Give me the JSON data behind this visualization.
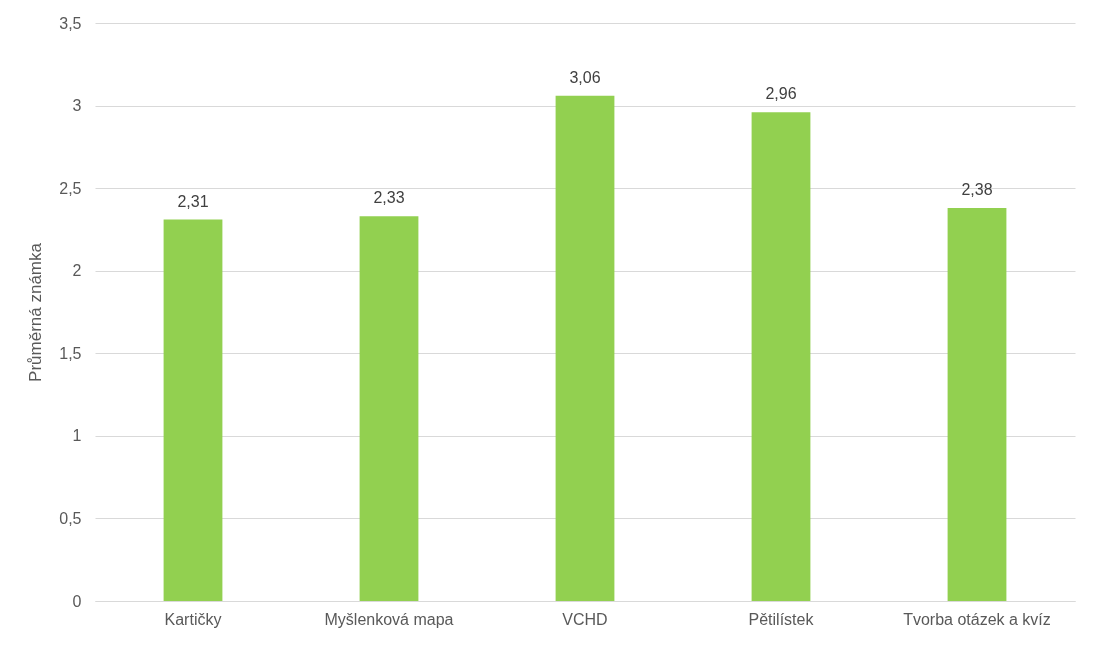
{
  "chart_data": {
    "type": "bar",
    "ylabel": "Průměrná známka",
    "categories": [
      "Kartičky",
      "Myšlenková mapa",
      "VCHD",
      "Pětilístek",
      "Tvorba otázek a kvíz"
    ],
    "values": [
      2.31,
      2.33,
      3.06,
      2.96,
      2.38
    ],
    "value_labels": [
      "2,31",
      "2,33",
      "3,06",
      "2,96",
      "2,38"
    ],
    "color": "#92d050",
    "ylim": [
      0,
      3.5
    ],
    "yticks": [
      0,
      {
        "value": 0.5,
        "label": "0,5"
      },
      1,
      {
        "value": 1.5,
        "label": "1,5"
      },
      2,
      {
        "value": 2.5,
        "label": "2,5"
      },
      3,
      {
        "value": 3.5,
        "label": "3,5"
      }
    ],
    "grid": "y"
  }
}
